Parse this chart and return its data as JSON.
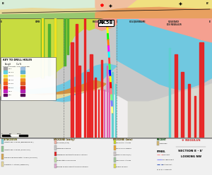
{
  "map_bg": "#d8edd8",
  "map_pink": "#f5c8a0",
  "map_pink2": "#f0a080",
  "map_yellow": "#f0e060",
  "cross_yg": "#c8dc40",
  "cross_green": "#50b030",
  "cross_blue": "#70c8e0",
  "cross_pink": "#f5a090",
  "cross_orange": "#d09040",
  "cross_tan": "#e8d898",
  "cross_red": "#e82020",
  "cross_yellow": "#f0e020",
  "cross_magenta": "#e060b0",
  "cross_cyan": "#60d0d0",
  "cross_white": "#f0f0f0",
  "cross_gray": "#c8c8c8",
  "legend_bg": "#f8f8f8"
}
